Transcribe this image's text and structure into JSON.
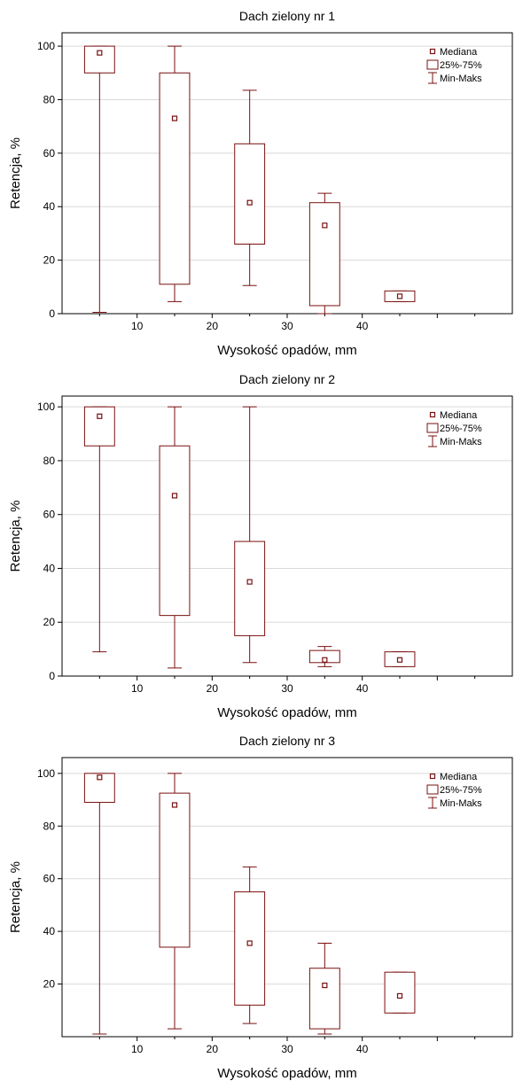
{
  "chart_data": [
    {
      "type": "box",
      "title": "Dach zielony nr 1",
      "xlabel": "Wysokość opadów, mm",
      "ylabel": "Retencja, %",
      "ylim": [
        0,
        105
      ],
      "yticks": [
        0,
        20,
        40,
        60,
        80,
        100
      ],
      "xticks": [
        10,
        20,
        30,
        40
      ],
      "xlim": [
        0,
        60
      ],
      "grid": "horizontal",
      "legend_position": "top-right",
      "legend": {
        "median": "Mediana",
        "box": "25%-75%",
        "whisker": "Min-Maks"
      },
      "color": "#7a1010",
      "boxes": [
        {
          "x": 5,
          "min": 0.5,
          "q1": 90,
          "median": 97.5,
          "q3": 100,
          "max": 100
        },
        {
          "x": 15,
          "min": 4.5,
          "q1": 11,
          "median": 73,
          "q3": 90,
          "max": 100
        },
        {
          "x": 25,
          "min": 10.5,
          "q1": 26,
          "median": 41.5,
          "q3": 63.5,
          "max": 83.5
        },
        {
          "x": 35,
          "min": 0,
          "q1": 3,
          "median": 33,
          "q3": 41.5,
          "max": 45
        },
        {
          "x": 45,
          "min": 4.5,
          "q1": 4.5,
          "median": 6.5,
          "q3": 8.5,
          "max": 8.5
        }
      ]
    },
    {
      "type": "box",
      "title": "Dach zielony nr 2",
      "xlabel": "Wysokość opadów, mm",
      "ylabel": "Retencja, %",
      "ylim": [
        0,
        104
      ],
      "yticks": [
        0,
        20,
        40,
        60,
        80,
        100
      ],
      "xticks": [
        10,
        20,
        30,
        40
      ],
      "xlim": [
        0,
        60
      ],
      "grid": "horizontal",
      "legend_position": "top-right",
      "legend": {
        "median": "Mediana",
        "box": "25%-75%",
        "whisker": "Min-Maks"
      },
      "color": "#7a1010",
      "boxes": [
        {
          "x": 5,
          "min": 9,
          "q1": 85.5,
          "median": 96.5,
          "q3": 100,
          "max": 100
        },
        {
          "x": 15,
          "min": 3,
          "q1": 22.5,
          "median": 67,
          "q3": 85.5,
          "max": 100
        },
        {
          "x": 25,
          "min": 5,
          "q1": 15,
          "median": 35,
          "q3": 50,
          "max": 100
        },
        {
          "x": 35,
          "min": 3.5,
          "q1": 5,
          "median": 6,
          "q3": 9.5,
          "max": 11
        },
        {
          "x": 45,
          "min": 3.5,
          "q1": 3.5,
          "median": 6,
          "q3": 9,
          "max": 9
        }
      ]
    },
    {
      "type": "box",
      "title": "Dach zielony nr 3",
      "xlabel": "Wysokość opadów, mm",
      "ylabel": "Retencja, %",
      "ylim": [
        0,
        106
      ],
      "yticks": [
        20,
        40,
        60,
        80,
        100
      ],
      "xticks": [
        10,
        20,
        30,
        40
      ],
      "xlim": [
        0,
        60
      ],
      "grid": "horizontal",
      "legend_position": "top-right",
      "legend": {
        "median": "Mediana",
        "box": "25%-75%",
        "whisker": "Min-Maks"
      },
      "color": "#7a1010",
      "boxes": [
        {
          "x": 5,
          "min": 1,
          "q1": 89,
          "median": 98.5,
          "q3": 100,
          "max": 100
        },
        {
          "x": 15,
          "min": 3,
          "q1": 34,
          "median": 88,
          "q3": 92.5,
          "max": 100
        },
        {
          "x": 25,
          "min": 5,
          "q1": 12,
          "median": 35.5,
          "q3": 55,
          "max": 64.5
        },
        {
          "x": 35,
          "min": 1,
          "q1": 3,
          "median": 19.5,
          "q3": 26,
          "max": 35.5
        },
        {
          "x": 45,
          "min": 9,
          "q1": 9,
          "median": 15.5,
          "q3": 24.5,
          "max": 24.5
        }
      ]
    }
  ]
}
